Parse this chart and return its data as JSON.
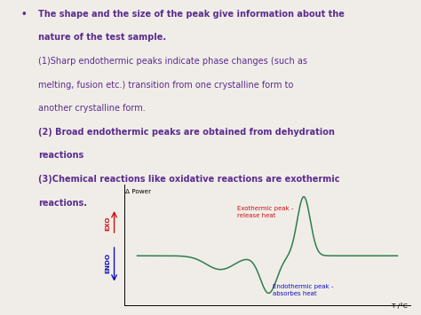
{
  "background_color": "#f0ede8",
  "text_color_purple": "#5b2d8e",
  "text_color_red": "#cc1111",
  "text_color_blue": "#1111bb",
  "curve_color": "#2e7d4f",
  "ylabel": "Δ Power",
  "xlabel": "T /°C",
  "endo_label": "ENDO",
  "exo_label": "EXO",
  "exo_annot_line1": "Exothermic peak -",
  "exo_annot_line2": "release heat",
  "endo_annot_line1": "Endothermic peak -",
  "endo_annot_line2": "absorbes heat",
  "fs_main": 7.0,
  "fs_small": 5.2,
  "fs_annot": 5.0
}
